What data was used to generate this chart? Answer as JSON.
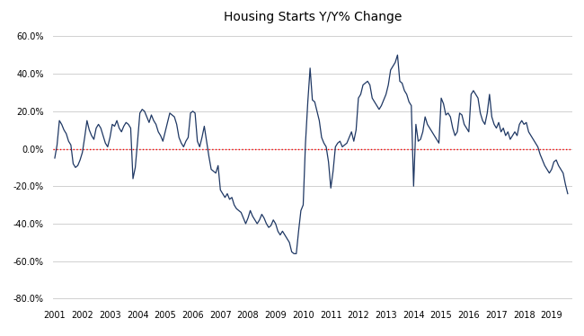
{
  "title": "Housing Starts Y/Y% Change",
  "background_color": "#ffffff",
  "plot_bg_color": "#ffffff",
  "line_color": "#1f3864",
  "zero_line_color": "#ff0000",
  "grid_color": "#d0d0d0",
  "xlim_start": 2000.92,
  "xlim_end": 2019.75,
  "ylim": [
    -0.82,
    0.65
  ],
  "yticks": [
    -0.8,
    -0.6,
    -0.4,
    -0.2,
    0.0,
    0.2,
    0.4,
    0.6
  ],
  "xticks": [
    2001,
    2002,
    2003,
    2004,
    2005,
    2006,
    2007,
    2008,
    2009,
    2010,
    2011,
    2012,
    2013,
    2014,
    2015,
    2016,
    2017,
    2018,
    2019
  ],
  "data": {
    "t": [
      2001.0,
      2001.083,
      2001.167,
      2001.25,
      2001.333,
      2001.417,
      2001.5,
      2001.583,
      2001.667,
      2001.75,
      2001.833,
      2001.917,
      2002.0,
      2002.083,
      2002.167,
      2002.25,
      2002.333,
      2002.417,
      2002.5,
      2002.583,
      2002.667,
      2002.75,
      2002.833,
      2002.917,
      2003.0,
      2003.083,
      2003.167,
      2003.25,
      2003.333,
      2003.417,
      2003.5,
      2003.583,
      2003.667,
      2003.75,
      2003.833,
      2003.917,
      2004.0,
      2004.083,
      2004.167,
      2004.25,
      2004.333,
      2004.417,
      2004.5,
      2004.583,
      2004.667,
      2004.75,
      2004.833,
      2004.917,
      2005.0,
      2005.083,
      2005.167,
      2005.25,
      2005.333,
      2005.417,
      2005.5,
      2005.583,
      2005.667,
      2005.75,
      2005.833,
      2005.917,
      2006.0,
      2006.083,
      2006.167,
      2006.25,
      2006.333,
      2006.417,
      2006.5,
      2006.583,
      2006.667,
      2006.75,
      2006.833,
      2006.917,
      2007.0,
      2007.083,
      2007.167,
      2007.25,
      2007.333,
      2007.417,
      2007.5,
      2007.583,
      2007.667,
      2007.75,
      2007.833,
      2007.917,
      2008.0,
      2008.083,
      2008.167,
      2008.25,
      2008.333,
      2008.417,
      2008.5,
      2008.583,
      2008.667,
      2008.75,
      2008.833,
      2008.917,
      2009.0,
      2009.083,
      2009.167,
      2009.25,
      2009.333,
      2009.417,
      2009.5,
      2009.583,
      2009.667,
      2009.75,
      2009.833,
      2009.917,
      2010.0,
      2010.083,
      2010.167,
      2010.25,
      2010.333,
      2010.417,
      2010.5,
      2010.583,
      2010.667,
      2010.75,
      2010.833,
      2010.917,
      2011.0,
      2011.083,
      2011.167,
      2011.25,
      2011.333,
      2011.417,
      2011.5,
      2011.583,
      2011.667,
      2011.75,
      2011.833,
      2011.917,
      2012.0,
      2012.083,
      2012.167,
      2012.25,
      2012.333,
      2012.417,
      2012.5,
      2012.583,
      2012.667,
      2012.75,
      2012.833,
      2012.917,
      2013.0,
      2013.083,
      2013.167,
      2013.25,
      2013.333,
      2013.417,
      2013.5,
      2013.583,
      2013.667,
      2013.75,
      2013.833,
      2013.917,
      2014.0,
      2014.083,
      2014.167,
      2014.25,
      2014.333,
      2014.417,
      2014.5,
      2014.583,
      2014.667,
      2014.75,
      2014.833,
      2014.917,
      2015.0,
      2015.083,
      2015.167,
      2015.25,
      2015.333,
      2015.417,
      2015.5,
      2015.583,
      2015.667,
      2015.75,
      2015.833,
      2015.917,
      2016.0,
      2016.083,
      2016.167,
      2016.25,
      2016.333,
      2016.417,
      2016.5,
      2016.583,
      2016.667,
      2016.75,
      2016.833,
      2016.917,
      2017.0,
      2017.083,
      2017.167,
      2017.25,
      2017.333,
      2017.417,
      2017.5,
      2017.583,
      2017.667,
      2017.75,
      2017.833,
      2017.917,
      2018.0,
      2018.083,
      2018.167,
      2018.25,
      2018.333,
      2018.417,
      2018.5,
      2018.583,
      2018.667,
      2018.75,
      2018.833,
      2018.917,
      2019.0,
      2019.083,
      2019.167,
      2019.25,
      2019.333,
      2019.417,
      2019.5,
      2019.583
    ],
    "y": [
      -0.05,
      0.02,
      0.15,
      0.13,
      0.1,
      0.08,
      0.04,
      0.02,
      -0.08,
      -0.1,
      -0.09,
      -0.06,
      -0.02,
      0.06,
      0.15,
      0.1,
      0.07,
      0.05,
      0.11,
      0.13,
      0.11,
      0.07,
      0.03,
      0.01,
      0.06,
      0.13,
      0.12,
      0.15,
      0.11,
      0.09,
      0.12,
      0.14,
      0.13,
      0.11,
      -0.16,
      -0.1,
      0.04,
      0.19,
      0.21,
      0.2,
      0.17,
      0.14,
      0.18,
      0.15,
      0.13,
      0.09,
      0.07,
      0.04,
      0.09,
      0.14,
      0.19,
      0.18,
      0.17,
      0.13,
      0.06,
      0.03,
      0.01,
      0.04,
      0.06,
      0.19,
      0.2,
      0.19,
      0.04,
      0.01,
      0.06,
      0.12,
      0.04,
      -0.04,
      -0.11,
      -0.12,
      -0.13,
      -0.09,
      -0.22,
      -0.24,
      -0.26,
      -0.24,
      -0.27,
      -0.26,
      -0.3,
      -0.32,
      -0.33,
      -0.34,
      -0.37,
      -0.4,
      -0.37,
      -0.33,
      -0.36,
      -0.38,
      -0.4,
      -0.38,
      -0.35,
      -0.37,
      -0.4,
      -0.42,
      -0.41,
      -0.38,
      -0.4,
      -0.44,
      -0.46,
      -0.44,
      -0.46,
      -0.48,
      -0.5,
      -0.55,
      -0.56,
      -0.56,
      -0.44,
      -0.33,
      -0.3,
      0.03,
      0.25,
      0.43,
      0.26,
      0.25,
      0.2,
      0.15,
      0.06,
      0.03,
      0.01,
      -0.07,
      -0.21,
      -0.12,
      0.01,
      0.03,
      0.04,
      0.01,
      0.02,
      0.03,
      0.06,
      0.09,
      0.04,
      0.1,
      0.27,
      0.29,
      0.34,
      0.35,
      0.36,
      0.34,
      0.27,
      0.25,
      0.23,
      0.21,
      0.23,
      0.26,
      0.29,
      0.34,
      0.42,
      0.44,
      0.46,
      0.5,
      0.36,
      0.35,
      0.31,
      0.29,
      0.25,
      0.23,
      -0.2,
      0.13,
      0.04,
      0.05,
      0.09,
      0.17,
      0.13,
      0.11,
      0.09,
      0.07,
      0.05,
      0.03,
      0.27,
      0.24,
      0.18,
      0.19,
      0.17,
      0.11,
      0.07,
      0.09,
      0.19,
      0.18,
      0.13,
      0.11,
      0.09,
      0.29,
      0.31,
      0.29,
      0.27,
      0.19,
      0.15,
      0.13,
      0.19,
      0.29,
      0.17,
      0.13,
      0.11,
      0.14,
      0.09,
      0.11,
      0.07,
      0.09,
      0.05,
      0.07,
      0.09,
      0.07,
      0.13,
      0.15,
      0.13,
      0.14,
      0.09,
      0.07,
      0.05,
      0.03,
      0.01,
      -0.03,
      -0.06,
      -0.09,
      -0.11,
      -0.13,
      -0.11,
      -0.07,
      -0.06,
      -0.09,
      -0.11,
      -0.13,
      -0.19,
      -0.24
    ]
  }
}
